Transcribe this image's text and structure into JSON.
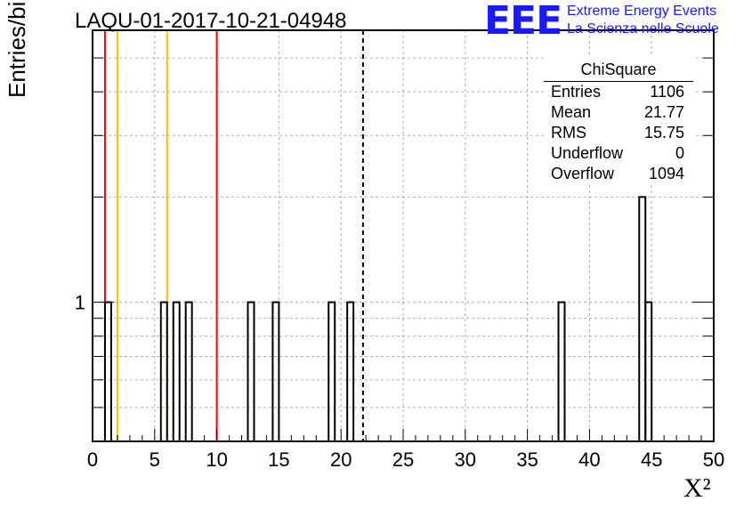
{
  "title": "LAQU-01-2017-10-21-04948",
  "logo": {
    "mark": "EEE",
    "line1": "Extreme Energy Events",
    "line2": "La Scienza nelle Scuole",
    "color": "#1a1aff"
  },
  "stats": {
    "title": "ChiSquare",
    "rows": [
      {
        "key": "Entries",
        "value": "1106"
      },
      {
        "key": "Mean",
        "value": "21.77"
      },
      {
        "key": "RMS",
        "value": "15.75"
      },
      {
        "key": "Underflow",
        "value": "0"
      },
      {
        "key": "Overflow",
        "value": "1094"
      }
    ]
  },
  "chart_data": {
    "type": "bar",
    "histogram": true,
    "title": "LAQU-01-2017-10-21-04948",
    "xlabel": "X²",
    "ylabel": "Entries/bin",
    "xlim": [
      0,
      50
    ],
    "ylim": [
      0.4,
      6
    ],
    "yscale": "log",
    "grid": true,
    "bin_width": 0.5,
    "x_ticks": [
      "0",
      "5",
      "10",
      "15",
      "20",
      "25",
      "30",
      "35",
      "40",
      "45",
      "50"
    ],
    "y_tick_labels": [
      "1"
    ],
    "bins": [
      {
        "x": 1.0,
        "value": 1
      },
      {
        "x": 5.5,
        "value": 1
      },
      {
        "x": 6.5,
        "value": 1
      },
      {
        "x": 7.5,
        "value": 1
      },
      {
        "x": 12.5,
        "value": 1
      },
      {
        "x": 14.5,
        "value": 1
      },
      {
        "x": 19.0,
        "value": 1
      },
      {
        "x": 20.5,
        "value": 1
      },
      {
        "x": 37.5,
        "value": 1
      },
      {
        "x": 44.0,
        "value": 2
      },
      {
        "x": 44.5,
        "value": 1
      }
    ],
    "vertical_lines": [
      {
        "x": 1.0,
        "color": "#dd1111",
        "style": "solid"
      },
      {
        "x": 2.0,
        "color": "#f2c10a",
        "style": "solid"
      },
      {
        "x": 6.0,
        "color": "#f2c10a",
        "style": "solid"
      },
      {
        "x": 10.0,
        "color": "#dd1111",
        "style": "solid"
      },
      {
        "x": 21.77,
        "color": "#000000",
        "style": "dashed"
      }
    ]
  }
}
